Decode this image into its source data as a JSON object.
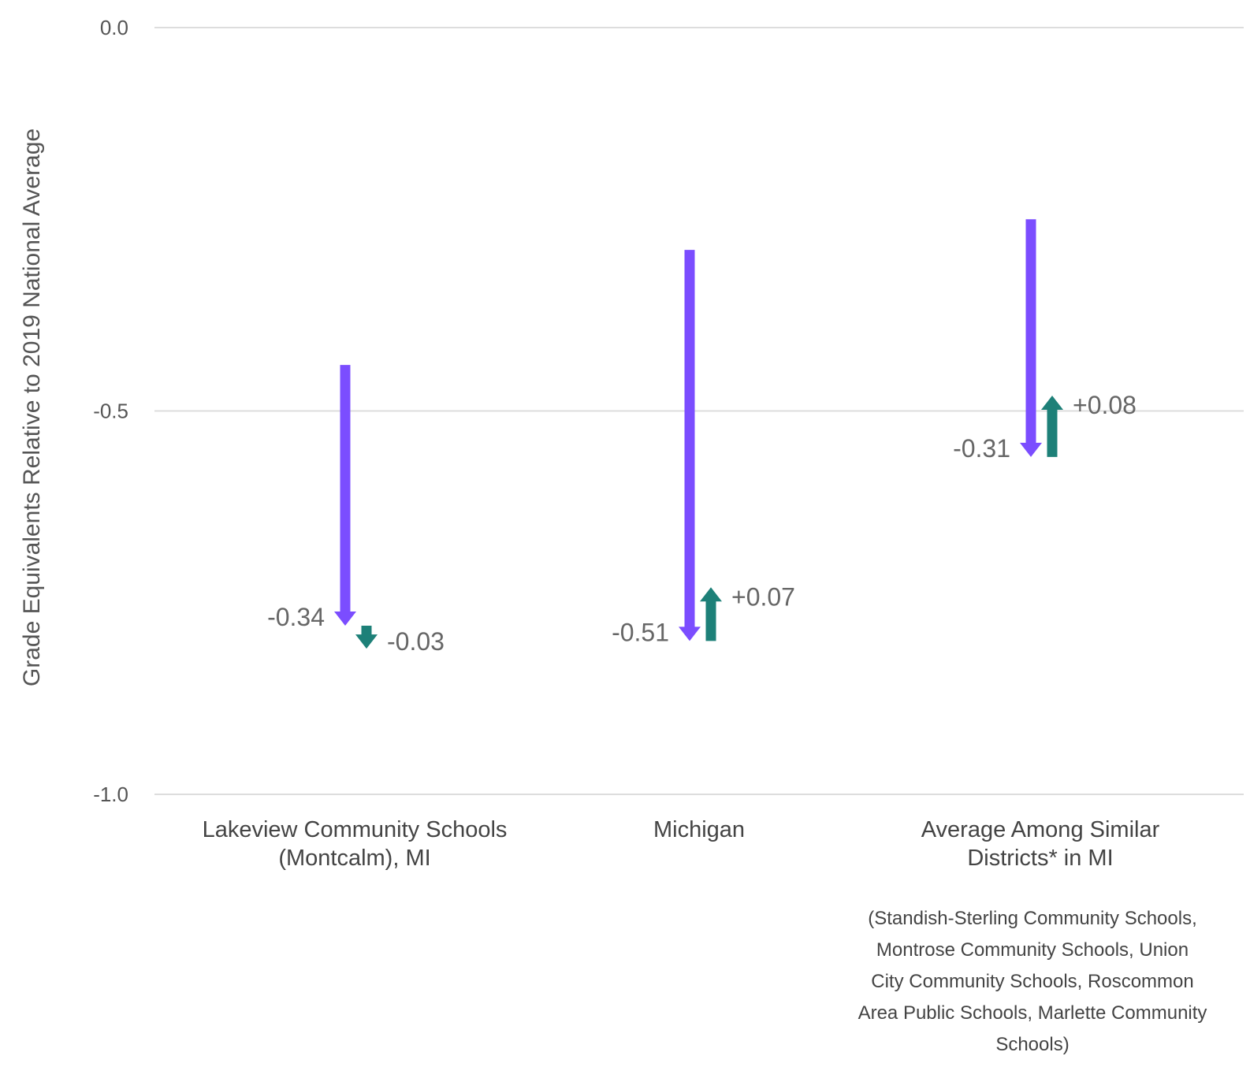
{
  "chart_data": {
    "type": "arrow",
    "ylabel": "Grade Equivalents Relative to 2019 National Average",
    "ylim": [
      -1.0,
      0.0
    ],
    "yticks": [
      {
        "value": 0.0,
        "label": "0.0"
      },
      {
        "value": -0.5,
        "label": "-0.5"
      },
      {
        "value": -1.0,
        "label": "-1.0"
      }
    ],
    "grid": true,
    "colors": {
      "decline": "#7b4dff",
      "change": "#1d8078"
    },
    "categories": [
      {
        "label_lines": [
          "Lakeview Community Schools",
          "(Montcalm), MI"
        ],
        "note_lines": [],
        "first_start": -0.44,
        "first_change": -0.34,
        "first_label": "-0.34",
        "second_change": -0.03,
        "second_label": "-0.03"
      },
      {
        "label_lines": [
          "Michigan"
        ],
        "note_lines": [],
        "first_start": -0.29,
        "first_change": -0.51,
        "first_label": "-0.51",
        "second_change": 0.07,
        "second_label": "+0.07"
      },
      {
        "label_lines": [
          "Average Among Similar",
          "Districts* in MI"
        ],
        "note_lines": [
          "(Standish-Sterling Community Schools,",
          "Montrose Community Schools, Union",
          "City Community Schools, Roscommon",
          "Area Public Schools, Marlette Community",
          "Schools)"
        ],
        "first_start": -0.25,
        "first_change": -0.31,
        "first_label": "-0.31",
        "second_change": 0.08,
        "second_label": "+0.08"
      }
    ]
  }
}
